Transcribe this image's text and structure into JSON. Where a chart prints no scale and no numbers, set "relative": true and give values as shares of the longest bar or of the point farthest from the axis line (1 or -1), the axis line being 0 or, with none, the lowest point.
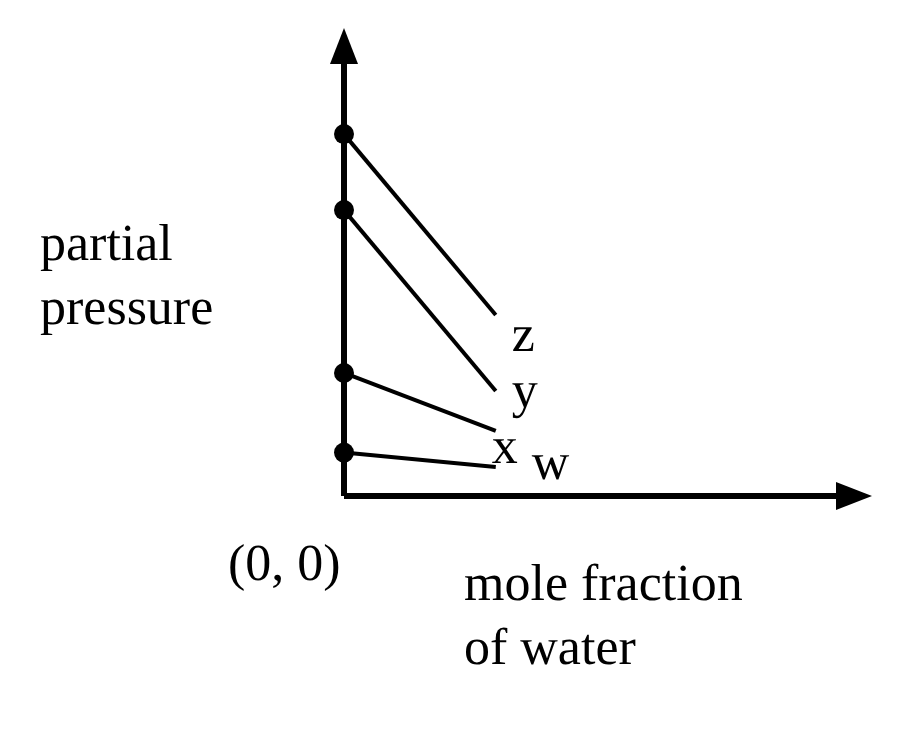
{
  "chart_data": {
    "type": "line",
    "relative": true,
    "xlabel": "mole fraction of water",
    "ylabel": "partial pressure",
    "annotations": [
      "(0, 0)"
    ],
    "categories": [
      null,
      null
    ],
    "marker": "circle",
    "series": [
      {
        "name": "z",
        "color": "#000000",
        "values": [
          1,
          0.5
        ]
      },
      {
        "name": "y",
        "color": "#000000",
        "values": [
          0.79,
          0.29
        ]
      },
      {
        "name": "x",
        "color": "#000000",
        "values": [
          0.34,
          0.18
        ]
      },
      {
        "name": "w",
        "color": "#000000",
        "values": [
          0.12,
          0.08
        ]
      }
    ]
  }
}
